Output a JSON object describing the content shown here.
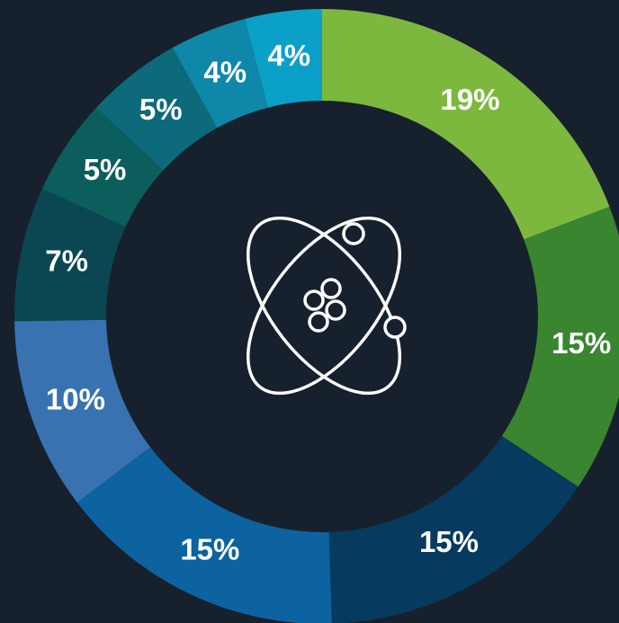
{
  "chart_data": {
    "type": "donut",
    "values": [
      19,
      15,
      15,
      15,
      10,
      7,
      5,
      5,
      4,
      4
    ],
    "value_labels": [
      "19%",
      "15%",
      "15%",
      "15%",
      "10%",
      "7%",
      "5%",
      "5%",
      "4%",
      "4%"
    ],
    "colors": [
      "#7db83e",
      "#3a852f",
      "#063a5e",
      "#0d62a0",
      "#3872b0",
      "#0b4752",
      "#0b5e5b",
      "#0c6a7a",
      "#0e87a8",
      "#0aa0c8"
    ]
  }
}
